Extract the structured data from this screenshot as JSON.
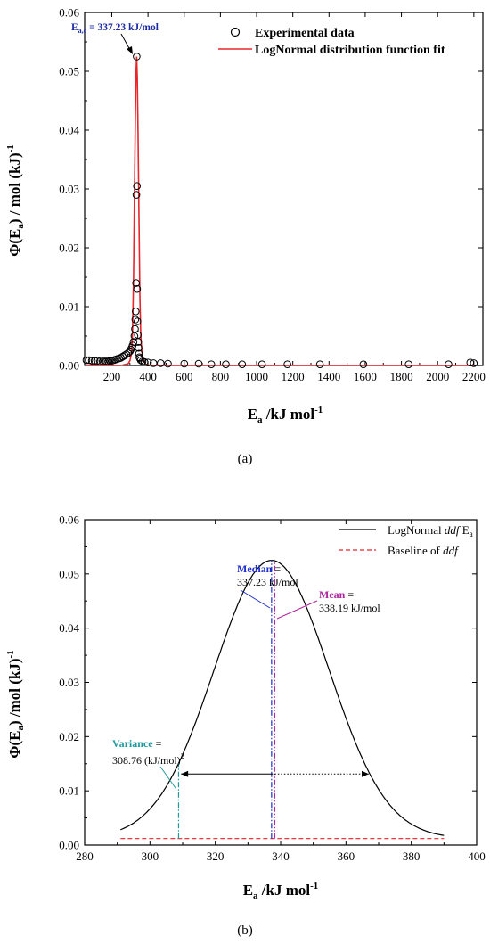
{
  "chart_data": [
    {
      "type": "scatter",
      "panel_label": "(a)",
      "ylabel_main": "Φ(E",
      "ylabel_sub": "a",
      "ylabel_rest": ") / mol (kJ)",
      "ylabel_sup": "-1",
      "xlabel_main": "E",
      "xlabel_sub": "a",
      "xlabel_rest": " /kJ mol",
      "xlabel_sup": "-1",
      "xlim": [
        50,
        2250
      ],
      "ylim": [
        0,
        0.06
      ],
      "xticks": [
        200,
        400,
        600,
        800,
        1000,
        1200,
        1400,
        1600,
        1800,
        2000,
        2200
      ],
      "yticks": [
        0.0,
        0.01,
        0.02,
        0.03,
        0.04,
        0.05,
        0.06
      ],
      "ytick_labels": [
        "0.00",
        "0.01",
        "0.02",
        "0.03",
        "0.04",
        "0.05",
        "0.06"
      ],
      "legend_position": "top-right",
      "legend": [
        {
          "label": "Experimental data",
          "marker": "open-circle",
          "color": "#000000"
        },
        {
          "label": "LogNormal distribution function fit",
          "marker": "line",
          "color": "#e8262b"
        }
      ],
      "annotation": {
        "main": "E",
        "sub": "a,c",
        "rest": " = 337.23 kJ/mol",
        "x": 337.23,
        "y": 0.0525,
        "color": "#1a2aa8"
      },
      "series": [
        {
          "name": "Experimental data",
          "x": [
            60,
            75,
            90,
            105,
            120,
            135,
            150,
            160,
            170,
            180,
            190,
            200,
            210,
            220,
            230,
            240,
            250,
            260,
            270,
            280,
            290,
            300,
            305,
            310,
            315,
            320,
            325,
            328,
            330,
            332,
            334,
            336,
            337.23,
            339,
            340,
            342,
            344,
            346,
            348,
            350,
            352,
            355,
            360,
            370,
            380,
            400,
            430,
            470,
            510,
            600,
            680,
            750,
            830,
            920,
            1030,
            1170,
            1350,
            1590,
            1840,
            2060,
            2180,
            2200
          ],
          "y": [
            0.0009,
            0.0009,
            0.0008,
            0.0008,
            0.0008,
            0.0007,
            0.0007,
            0.0007,
            0.0007,
            0.0007,
            0.0008,
            0.0008,
            0.0009,
            0.001,
            0.0011,
            0.0012,
            0.0013,
            0.0015,
            0.0017,
            0.0019,
            0.0021,
            0.0024,
            0.0027,
            0.003,
            0.0034,
            0.004,
            0.005,
            0.0062,
            0.0078,
            0.0092,
            0.014,
            0.029,
            0.0525,
            0.0305,
            0.013,
            0.0075,
            0.0052,
            0.004,
            0.003,
            0.002,
            0.0014,
            0.0012,
            0.0009,
            0.0007,
            0.0006,
            0.0005,
            0.0004,
            0.0004,
            0.0003,
            0.0003,
            0.0003,
            0.0002,
            0.0002,
            0.0002,
            0.0002,
            0.0002,
            0.0002,
            0.0002,
            0.0002,
            0.0002,
            0.0005,
            0.0004
          ]
        },
        {
          "name": "LogNormal distribution function fit",
          "x": [
            60,
            150,
            250,
            290,
            300,
            310,
            315,
            320,
            325,
            330,
            334,
            337.23,
            341,
            345,
            350,
            355,
            360,
            370,
            390,
            450,
            800,
            1500,
            2200
          ],
          "y": [
            0.0,
            0.0,
            0.0,
            0.0003,
            0.0008,
            0.0022,
            0.006,
            0.015,
            0.029,
            0.042,
            0.05,
            0.0525,
            0.049,
            0.04,
            0.025,
            0.012,
            0.005,
            0.001,
            0.0001,
            0.0,
            0.0,
            0.0,
            0.0
          ]
        }
      ]
    },
    {
      "type": "line",
      "panel_label": "(b)",
      "ylabel_main": "Φ(E",
      "ylabel_sub": "a",
      "ylabel_rest": ") /mol (kJ)",
      "ylabel_sup": "-1",
      "xlabel_main": "E",
      "xlabel_sub": "a",
      "xlabel_rest": " /kJ mol",
      "xlabel_sup": "-1",
      "xlim": [
        280,
        400
      ],
      "ylim": [
        0,
        0.06
      ],
      "xticks": [
        280,
        300,
        320,
        340,
        360,
        380,
        400
      ],
      "yticks": [
        0.0,
        0.01,
        0.02,
        0.03,
        0.04,
        0.05,
        0.06
      ],
      "ytick_labels": [
        "0.00",
        "0.01",
        "0.02",
        "0.03",
        "0.04",
        "0.05",
        "0.06"
      ],
      "legend_position": "top-right",
      "legend": [
        {
          "label_main": "LogNormal ",
          "label_italic": "ddf",
          "label_rest": " E",
          "label_sub": "a",
          "style": "solid",
          "color": "#000000"
        },
        {
          "label_main": "Baseline of ",
          "label_italic": "ddf",
          "label_rest": "",
          "label_sub": "",
          "style": "dashed",
          "color": "#e8262b"
        }
      ],
      "curve": {
        "peak_x": 337.23,
        "peak_y": 0.0525,
        "sigma": 17.6,
        "baseline": 0.0012,
        "x_start": 291,
        "x_end": 390
      },
      "baseline": {
        "x_start": 291,
        "x_end": 390,
        "y": 0.0012
      },
      "markers": [
        {
          "name": "Median",
          "label": "Median",
          "value_text": "337.23 kJ/mol",
          "x": 337.23,
          "color": "#1e2fd0"
        },
        {
          "name": "Mean",
          "label": "Mean",
          "value_text": "338.19 kJ/mol",
          "x": 338.19,
          "color": "#b0239e"
        },
        {
          "name": "Variance",
          "label": "Variance",
          "value_text": "308.76 (kJ/mol)",
          "value_sup": "2",
          "x": 308.76,
          "color": "#1f9a9a"
        }
      ],
      "width_arrow": {
        "x_from": 309.5,
        "x_to": 367,
        "x_mid": 337.23,
        "y": 0.0131
      }
    }
  ]
}
